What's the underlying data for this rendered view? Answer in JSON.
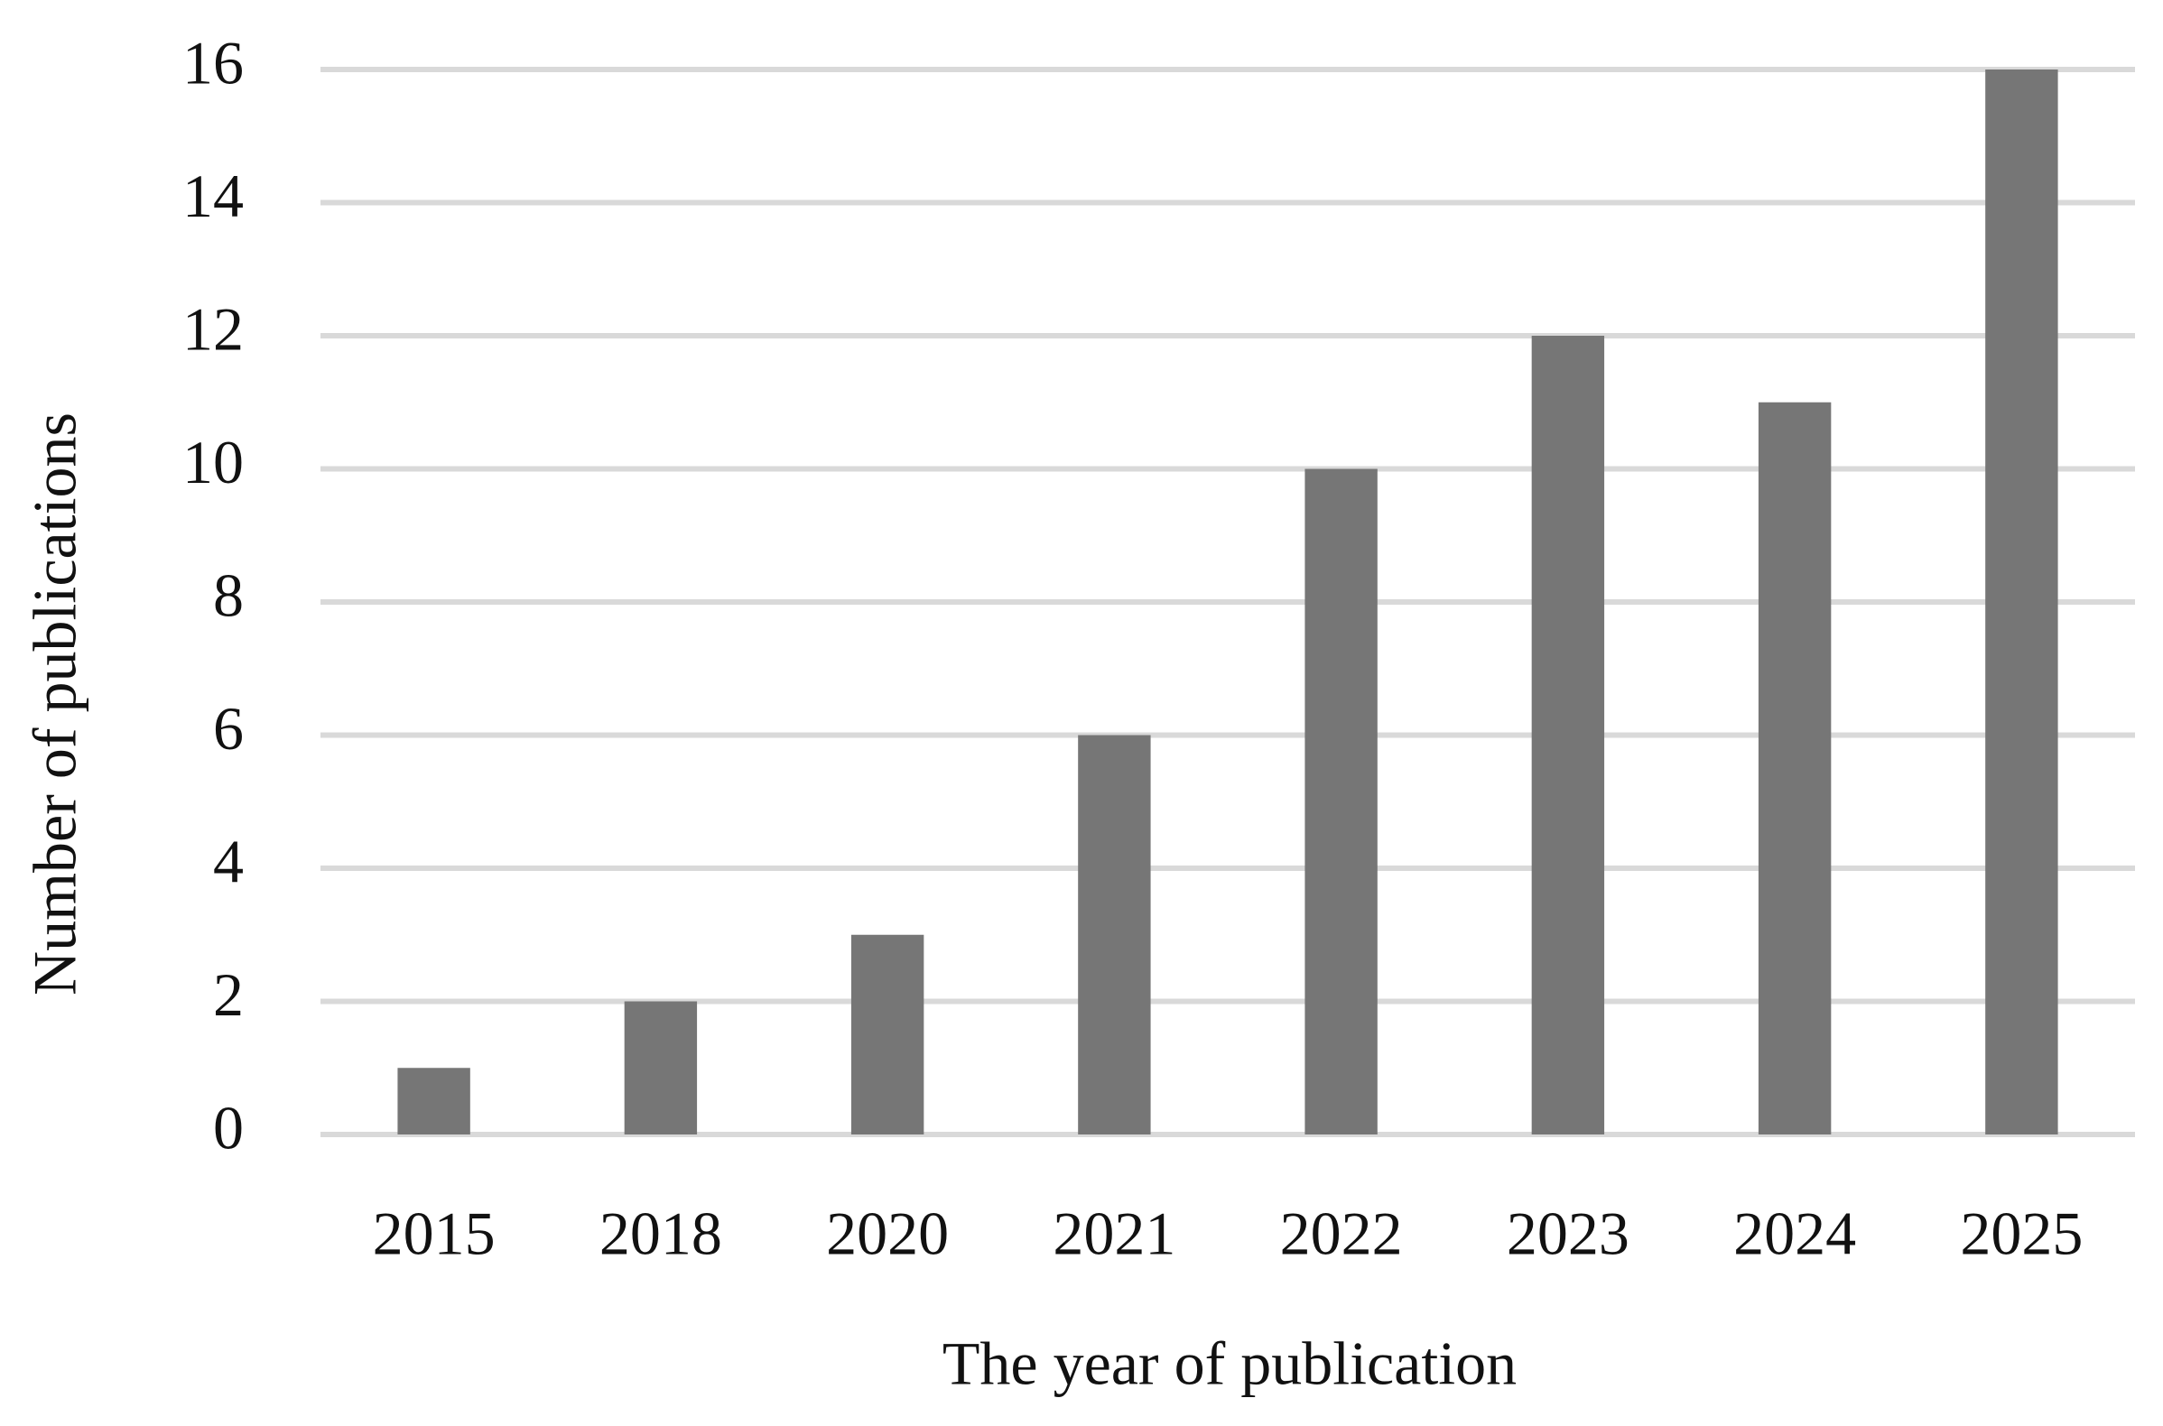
{
  "chart_data": {
    "type": "bar",
    "x_label": "The year of publication",
    "y_label": "Number of publications",
    "categories": [
      "2015",
      "2018",
      "2020",
      "2021",
      "2022",
      "2023",
      "2024",
      "2025"
    ],
    "values": [
      1,
      2,
      3,
      6,
      10,
      12,
      11,
      16
    ],
    "color": "#767676",
    "ylim": [
      0,
      16
    ],
    "yticks": [
      0,
      2,
      4,
      6,
      8,
      10,
      12,
      14,
      16
    ],
    "grid": true
  }
}
